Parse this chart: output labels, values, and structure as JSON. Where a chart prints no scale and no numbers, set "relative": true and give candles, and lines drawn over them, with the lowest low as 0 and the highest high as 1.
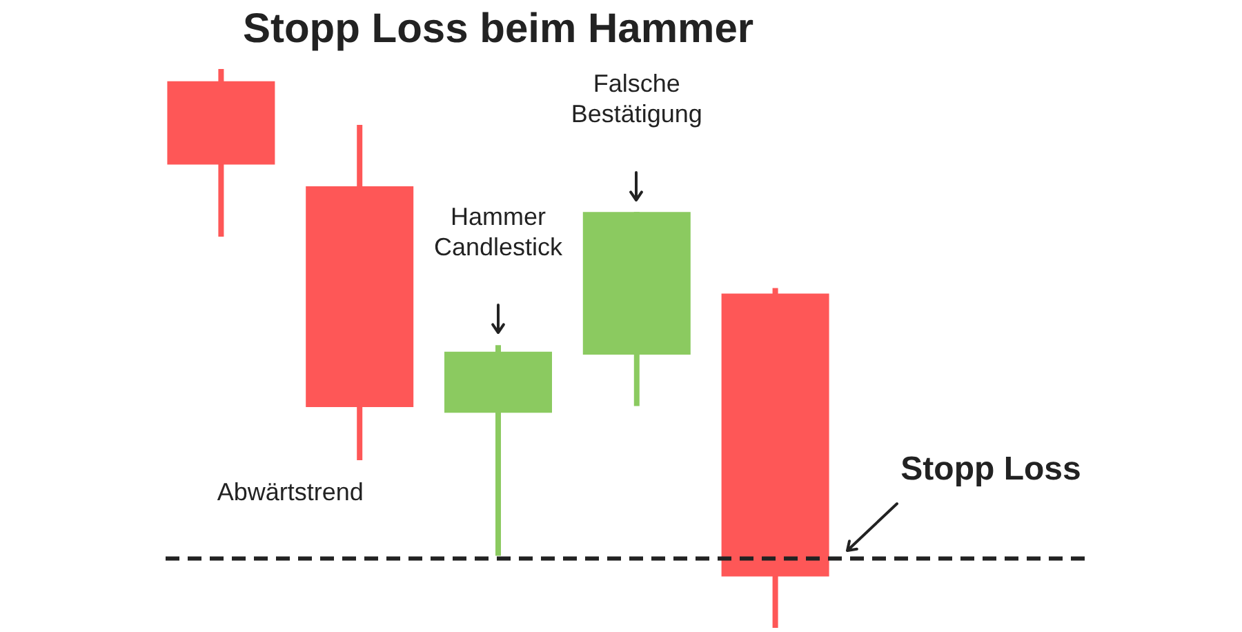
{
  "chart_data": {
    "type": "candlestick",
    "title": "Stopp Loss beim Hammer",
    "relative": true,
    "categories": [
      null,
      null,
      null,
      null,
      null
    ],
    "ohlc": [
      [
        0.978,
        1,
        0.7,
        0.829
      ],
      [
        0.79,
        0.9,
        0.3,
        0.395
      ],
      [
        0.385,
        0.506,
        0.129,
        0.494
      ],
      [
        0.489,
        0.744,
        0.397,
        0.744
      ],
      [
        0.598,
        0.608,
        0,
        0.092
      ]
    ],
    "colors": [
      "#fe5757",
      "#fe5757",
      "#8bca60",
      "#8bca60",
      "#fe5757"
    ],
    "annotations": [
      "Abwärtstrend",
      "Hammer Candlestick",
      "Falsche Bestätigung"
    ],
    "ref_lines": [
      {
        "axis": "y",
        "value": 0.124,
        "label": "Stopp Loss",
        "color": "#222222",
        "line_style": "dashed"
      }
    ],
    "legend": false
  }
}
